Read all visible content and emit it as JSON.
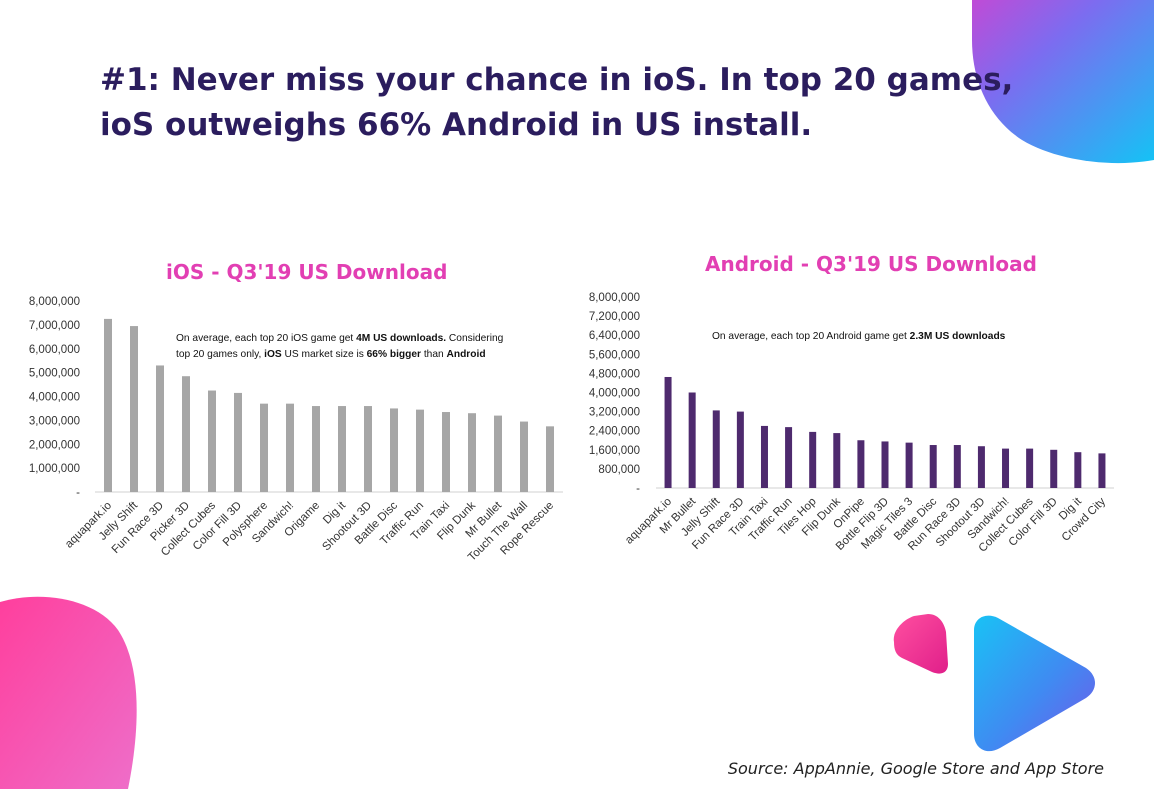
{
  "headline": {
    "line1": "#1: Never miss your chance in ioS. In top 20 games,",
    "line2": "ioS outweighs 66% Android in US install."
  },
  "source": "Source: AppAnnie, Google Store and App Store",
  "colors": {
    "headline": "#2b1d5e",
    "chart_title": "#e23fb3",
    "ios_bar": "#a6a6a6",
    "android_bar": "#4e2a6e",
    "decor_pink": "#ee3fa6",
    "decor_blue": "#2aa4f4"
  },
  "ios_note": {
    "p1": "On average, each top 20 iOS game get ",
    "b1": "4M US downloads.",
    "p2": " Considering",
    "p3": "top 20 games only, ",
    "b2": "iOS",
    "p4": " US market size is ",
    "b3": "66% bigger",
    "p5": " than ",
    "b4": "Android"
  },
  "android_note": {
    "p1": "On average, each top 20 Android game get ",
    "b1": "2.3M US downloads"
  },
  "chart_data": [
    {
      "type": "bar",
      "title": "iOS - Q3'19 US Download",
      "categories": [
        "aquapark.io",
        "Jelly Shift",
        "Fun Race 3D",
        "Picker 3D",
        "Collect Cubes",
        "Color Fill 3D",
        "Polysphere",
        "Sandwich!",
        "Origame",
        "Dig it",
        "Shootout 3D",
        "Battle Disc",
        "Traffic Run",
        "Train Taxi",
        "Flip Dunk",
        "Mr Bullet",
        "Touch The Wall",
        "Rope Rescue"
      ],
      "values": [
        7250000,
        6950000,
        5300000,
        4850000,
        4250000,
        4150000,
        3700000,
        3700000,
        3600000,
        3600000,
        3600000,
        3500000,
        3450000,
        3350000,
        3300000,
        3200000,
        2950000,
        2750000
      ],
      "ylim": [
        0,
        8000000
      ],
      "yticks": [
        "-",
        "1,000,000",
        "2,000,000",
        "3,000,000",
        "4,000,000",
        "5,000,000",
        "6,000,000",
        "7,000,000",
        "8,000,000"
      ],
      "grid": false
    },
    {
      "type": "bar",
      "title": "Android - Q3'19 US Download",
      "categories": [
        "aquapark.io",
        "Mr Bullet",
        "Jelly Shift",
        "Fun Race 3D",
        "Train Taxi",
        "Traffic Run",
        "Tiles Hop",
        "Flip Dunk",
        "OnPipe",
        "Bottle Flip 3D",
        "Magic Tiles 3",
        "Battle Disc",
        "Run Race 3D",
        "Shootout 3D",
        "Sandwich!",
        "Collect Cubes",
        "Color Fill 3D",
        "Dig it",
        "Crowd City"
      ],
      "values": [
        4650000,
        4000000,
        3250000,
        3200000,
        2600000,
        2550000,
        2350000,
        2300000,
        2000000,
        1950000,
        1900000,
        1800000,
        1800000,
        1750000,
        1650000,
        1650000,
        1600000,
        1500000,
        1450000
      ],
      "ylim": [
        0,
        8000000
      ],
      "yticks": [
        "-",
        "800,000",
        "1,600,000",
        "2,400,000",
        "3,200,000",
        "4,000,000",
        "4,800,000",
        "5,600,000",
        "6,400,000",
        "7,200,000",
        "8,000,000"
      ],
      "grid": false
    }
  ]
}
